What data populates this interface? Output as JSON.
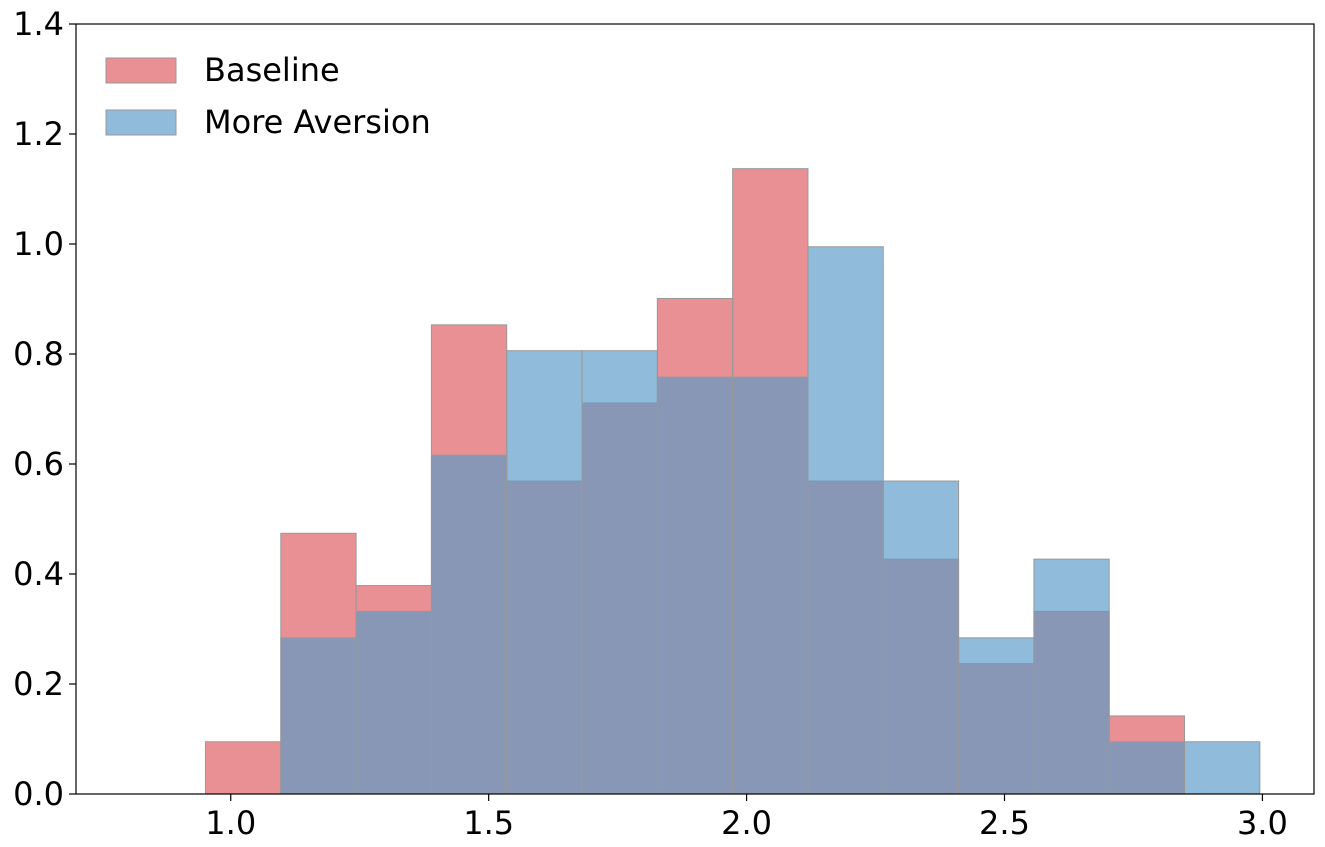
{
  "chart_data": {
    "type": "bar",
    "subtype": "overlapping-histogram",
    "title": "",
    "xlabel": "",
    "ylabel": "",
    "xlim": [
      0.7,
      3.1
    ],
    "ylim": [
      0,
      1.4
    ],
    "xticks": [
      "1.0",
      "1.5",
      "2.0",
      "2.5",
      "3.0"
    ],
    "yticks": [
      "0.0",
      "0.2",
      "0.4",
      "0.6",
      "0.8",
      "1.0",
      "1.2",
      "1.4"
    ],
    "bin_edges": [
      0.951,
      1.097,
      1.243,
      1.389,
      1.535,
      1.681,
      1.827,
      1.973,
      2.119,
      2.265,
      2.411,
      2.557,
      2.703,
      2.849,
      2.995
    ],
    "legend_position": "top-left",
    "grid": false,
    "series": [
      {
        "name": "Baseline",
        "color": "#e06b6f",
        "opacity": 0.75,
        "values": [
          0.095,
          0.474,
          0.379,
          0.853,
          0.569,
          0.711,
          0.901,
          1.137,
          0.569,
          0.427,
          0.237,
          0.332,
          0.142,
          0.0
        ]
      },
      {
        "name": "More Aversion",
        "color": "#5b9bc8",
        "opacity": 0.68,
        "values": [
          0.0,
          0.284,
          0.332,
          0.616,
          0.806,
          0.806,
          0.758,
          0.758,
          0.995,
          0.569,
          0.284,
          0.427,
          0.095,
          0.095
        ]
      }
    ]
  }
}
